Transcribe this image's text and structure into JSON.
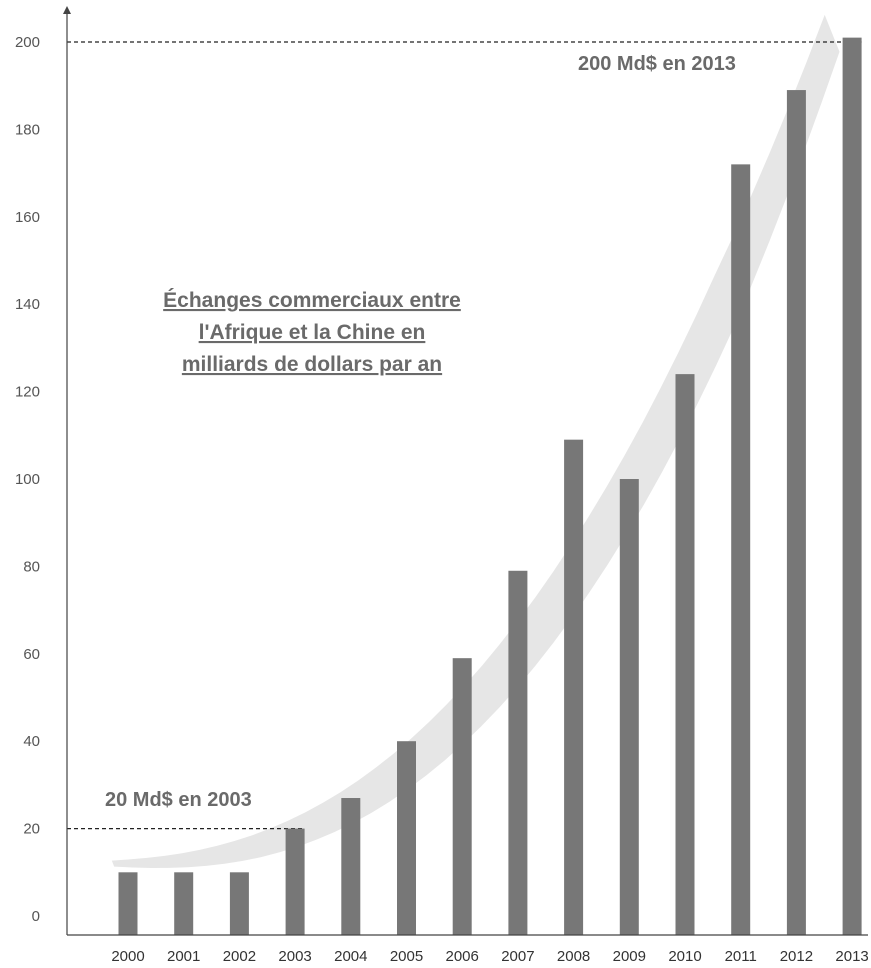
{
  "chart_data": {
    "type": "bar",
    "title_lines": [
      "Échanges commerciaux entre",
      "l'Afrique et la Chine en",
      "milliards de dollars par an"
    ],
    "categories": [
      "2000",
      "2001",
      "2002",
      "2003",
      "2004",
      "2005",
      "2006",
      "2007",
      "2008",
      "2009",
      "2010",
      "2011",
      "2012",
      "2013"
    ],
    "values": [
      10,
      10,
      10,
      20,
      27,
      40,
      59,
      79,
      109,
      100,
      124,
      172,
      189,
      201
    ],
    "ylim": [
      0,
      200
    ],
    "yticks": [
      "0",
      "20",
      "40",
      "60",
      "80",
      "100",
      "120",
      "140",
      "160",
      "180",
      "200"
    ],
    "xlabel": "",
    "ylabel": "",
    "bar_color": "#777777",
    "trend_color": "#e6e6e6",
    "annotations": [
      {
        "text": "20 Md$ en 2003",
        "y": 20,
        "x_end": "2003"
      },
      {
        "text": "200 Md$ en 2013",
        "y": 200,
        "x_end": "2013"
      }
    ],
    "grid": false
  }
}
